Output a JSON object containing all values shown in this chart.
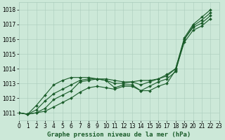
{
  "title": "Graphe pression niveau de la mer (hPa)",
  "background_color": "#cce8d8",
  "plot_bg_color": "#cce8d8",
  "grid_color": "#aaccbc",
  "line_color": "#1a5c2a",
  "xlim": [
    0,
    23
  ],
  "ylim": [
    1010.5,
    1018.5
  ],
  "yticks": [
    1011,
    1012,
    1013,
    1014,
    1015,
    1016,
    1017,
    1018
  ],
  "xticks": [
    0,
    1,
    2,
    3,
    4,
    5,
    6,
    7,
    8,
    9,
    10,
    11,
    12,
    13,
    14,
    15,
    16,
    17,
    18,
    19,
    20,
    21,
    22,
    23
  ],
  "series": [
    [
      1011.0,
      1010.9,
      1011.0,
      1011.1,
      1011.4,
      1011.7,
      1012.0,
      1012.4,
      1012.7,
      1012.8,
      1012.7,
      1012.6,
      1012.8,
      1012.8,
      1012.5,
      1012.5,
      1012.8,
      1013.0,
      1013.9,
      1015.8,
      1016.6,
      1016.9,
      1017.4
    ],
    [
      1011.0,
      1010.9,
      1011.0,
      1011.3,
      1011.9,
      1012.2,
      1012.5,
      1013.1,
      1013.2,
      1013.3,
      1013.2,
      1012.7,
      1012.9,
      1012.9,
      1012.5,
      1012.8,
      1013.1,
      1013.3,
      1013.8,
      1016.0,
      1016.8,
      1017.1,
      1017.6
    ],
    [
      1011.0,
      1010.9,
      1011.2,
      1011.8,
      1012.3,
      1012.6,
      1012.9,
      1013.2,
      1013.3,
      1013.3,
      1013.2,
      1013.0,
      1013.0,
      1013.1,
      1012.9,
      1013.1,
      1013.3,
      1013.6,
      1014.0,
      1016.0,
      1016.9,
      1017.3,
      1017.8
    ],
    [
      1011.0,
      1010.9,
      1011.5,
      1012.2,
      1012.9,
      1013.2,
      1013.4,
      1013.4,
      1013.4,
      1013.3,
      1013.3,
      1013.2,
      1013.1,
      1013.1,
      1013.2,
      1013.2,
      1013.3,
      1013.5,
      1014.0,
      1016.1,
      1017.0,
      1017.5,
      1018.0
    ]
  ],
  "marker": "D",
  "markersize": 2.0,
  "linewidth": 0.8,
  "tick_fontsize": 5.5,
  "title_fontsize": 6.5
}
